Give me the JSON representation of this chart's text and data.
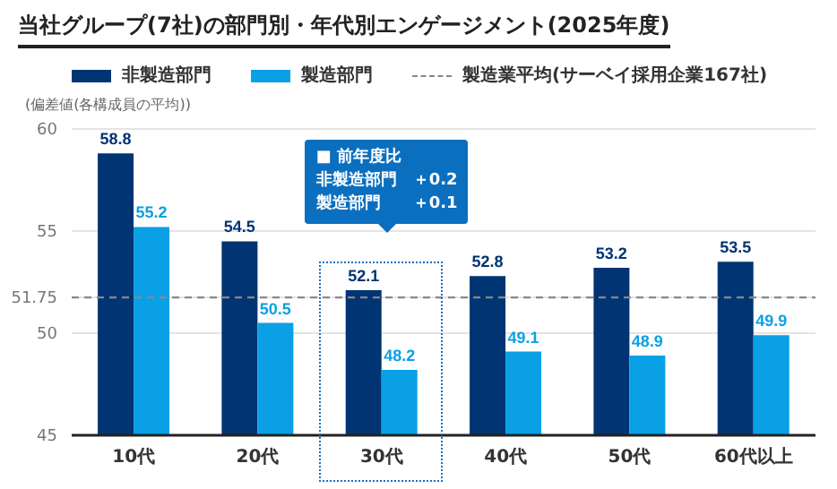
{
  "chart_data": {
    "type": "bar",
    "title": "当社グループ(7社)の部門別・年代別エンゲージメント(2025年度)",
    "ylabel": "(偏差値(各構成員の平均))",
    "categories": [
      "10代",
      "20代",
      "30代",
      "40代",
      "50代",
      "60代以上"
    ],
    "series": [
      {
        "name": "非製造部門",
        "color": "#003473",
        "values": [
          58.8,
          54.5,
          52.1,
          52.8,
          53.2,
          53.5
        ]
      },
      {
        "name": "製造部門",
        "color": "#0aa0e6",
        "values": [
          55.2,
          50.5,
          48.2,
          49.1,
          48.9,
          49.9
        ]
      }
    ],
    "ylim": [
      45,
      60
    ],
    "yticks": [
      45,
      50,
      51.75,
      55,
      60
    ],
    "grid": "y",
    "legend": "top",
    "data_labels": true,
    "ref_lines": [
      {
        "axis": "y",
        "value": 51.75,
        "label": "製造業平均(サーベイ採用企業167社)",
        "color": "#888888",
        "line_style": "dashed"
      }
    ],
    "annotations": [
      "■ 前年度比",
      "非製造部門　＋0.2",
      "製造部門　　＋0.1"
    ]
  }
}
